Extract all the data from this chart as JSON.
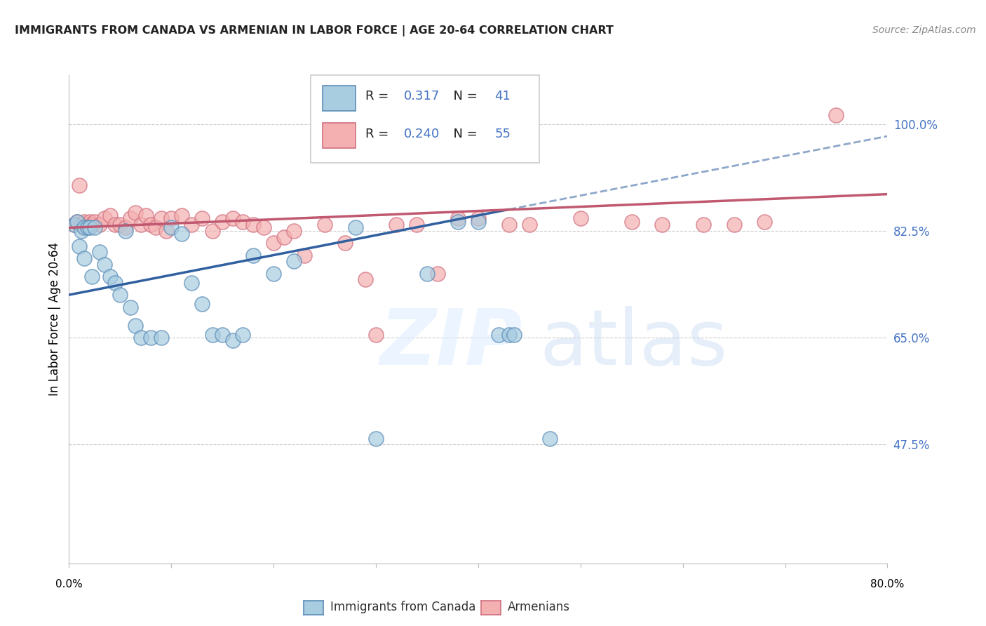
{
  "title": "IMMIGRANTS FROM CANADA VS ARMENIAN IN LABOR FORCE | AGE 20-64 CORRELATION CHART",
  "source": "Source: ZipAtlas.com",
  "ylabel": "In Labor Force | Age 20-64",
  "xmin": 0.0,
  "xmax": 80.0,
  "ymin": 28.0,
  "ymax": 108.0,
  "yticks": [
    47.5,
    65.0,
    82.5,
    100.0
  ],
  "xticks": [
    0.0,
    10.0,
    20.0,
    30.0,
    40.0,
    50.0,
    60.0,
    70.0,
    80.0
  ],
  "blue_label": "Immigrants from Canada",
  "pink_label": "Armenians",
  "blue_R": "0.317",
  "blue_N": "41",
  "pink_R": "0.240",
  "pink_N": "55",
  "blue_fill_color": "#a8cce0",
  "pink_fill_color": "#f4b0b0",
  "blue_edge_color": "#5b8db8",
  "pink_edge_color": "#d07080",
  "blue_line_color": "#3060a0",
  "pink_line_color": "#c05870",
  "value_color": "#4472c4",
  "label_color": "#222222",
  "background_color": "#ffffff",
  "blue_points_x": [
    0.5,
    0.8,
    1.0,
    1.2,
    1.5,
    1.5,
    1.8,
    2.0,
    2.2,
    2.5,
    3.0,
    3.5,
    4.0,
    4.5,
    5.0,
    5.5,
    6.0,
    6.5,
    7.0,
    8.0,
    9.0,
    10.0,
    11.0,
    12.0,
    13.0,
    14.0,
    15.0,
    16.0,
    17.0,
    18.0,
    20.0,
    22.0,
    28.0,
    30.0,
    35.0,
    38.0,
    40.0,
    42.0,
    43.0,
    43.5,
    47.0
  ],
  "blue_points_y": [
    83.5,
    84.0,
    80.0,
    82.5,
    83.0,
    78.0,
    83.0,
    83.0,
    75.0,
    83.0,
    79.0,
    77.0,
    75.0,
    74.0,
    72.0,
    82.5,
    70.0,
    67.0,
    65.0,
    65.0,
    65.0,
    83.0,
    82.0,
    74.0,
    70.5,
    65.5,
    65.5,
    64.5,
    65.5,
    78.5,
    75.5,
    77.5,
    83.0,
    48.5,
    75.5,
    84.0,
    84.0,
    65.5,
    65.5,
    65.5,
    48.5
  ],
  "pink_points_x": [
    0.5,
    0.8,
    1.0,
    1.2,
    1.5,
    1.8,
    2.0,
    2.2,
    2.5,
    3.0,
    3.5,
    4.0,
    4.5,
    5.0,
    5.5,
    6.0,
    6.5,
    7.0,
    7.5,
    8.0,
    8.5,
    9.0,
    9.5,
    10.0,
    11.0,
    12.0,
    13.0,
    14.0,
    15.0,
    16.0,
    17.0,
    18.0,
    19.0,
    20.0,
    21.0,
    22.0,
    23.0,
    25.0,
    27.0,
    29.0,
    30.0,
    32.0,
    34.0,
    36.0,
    38.0,
    40.0,
    43.0,
    45.0,
    50.0,
    55.0,
    58.0,
    62.0,
    65.0,
    68.0,
    75.0
  ],
  "pink_points_y": [
    83.5,
    84.0,
    90.0,
    83.5,
    84.0,
    83.5,
    84.0,
    83.5,
    84.0,
    83.5,
    84.5,
    85.0,
    83.5,
    83.5,
    83.0,
    84.5,
    85.5,
    83.5,
    85.0,
    83.5,
    83.0,
    84.5,
    82.5,
    84.5,
    85.0,
    83.5,
    84.5,
    82.5,
    84.0,
    84.5,
    84.0,
    83.5,
    83.0,
    80.5,
    81.5,
    82.5,
    78.5,
    83.5,
    80.5,
    74.5,
    65.5,
    83.5,
    83.5,
    75.5,
    84.5,
    84.5,
    83.5,
    83.5,
    84.5,
    84.0,
    83.5,
    83.5,
    83.5,
    84.0,
    101.5
  ],
  "blue_line_x0": 0.0,
  "blue_line_y0": 72.0,
  "blue_line_x1": 43.0,
  "blue_line_y1": 86.0,
  "blue_dashed_x0": 43.0,
  "blue_dashed_y0": 86.0,
  "blue_dashed_x1": 80.0,
  "blue_dashed_y1": 98.0,
  "pink_line_x0": 0.0,
  "pink_line_y0": 83.0,
  "pink_line_x1": 80.0,
  "pink_line_y1": 88.5
}
